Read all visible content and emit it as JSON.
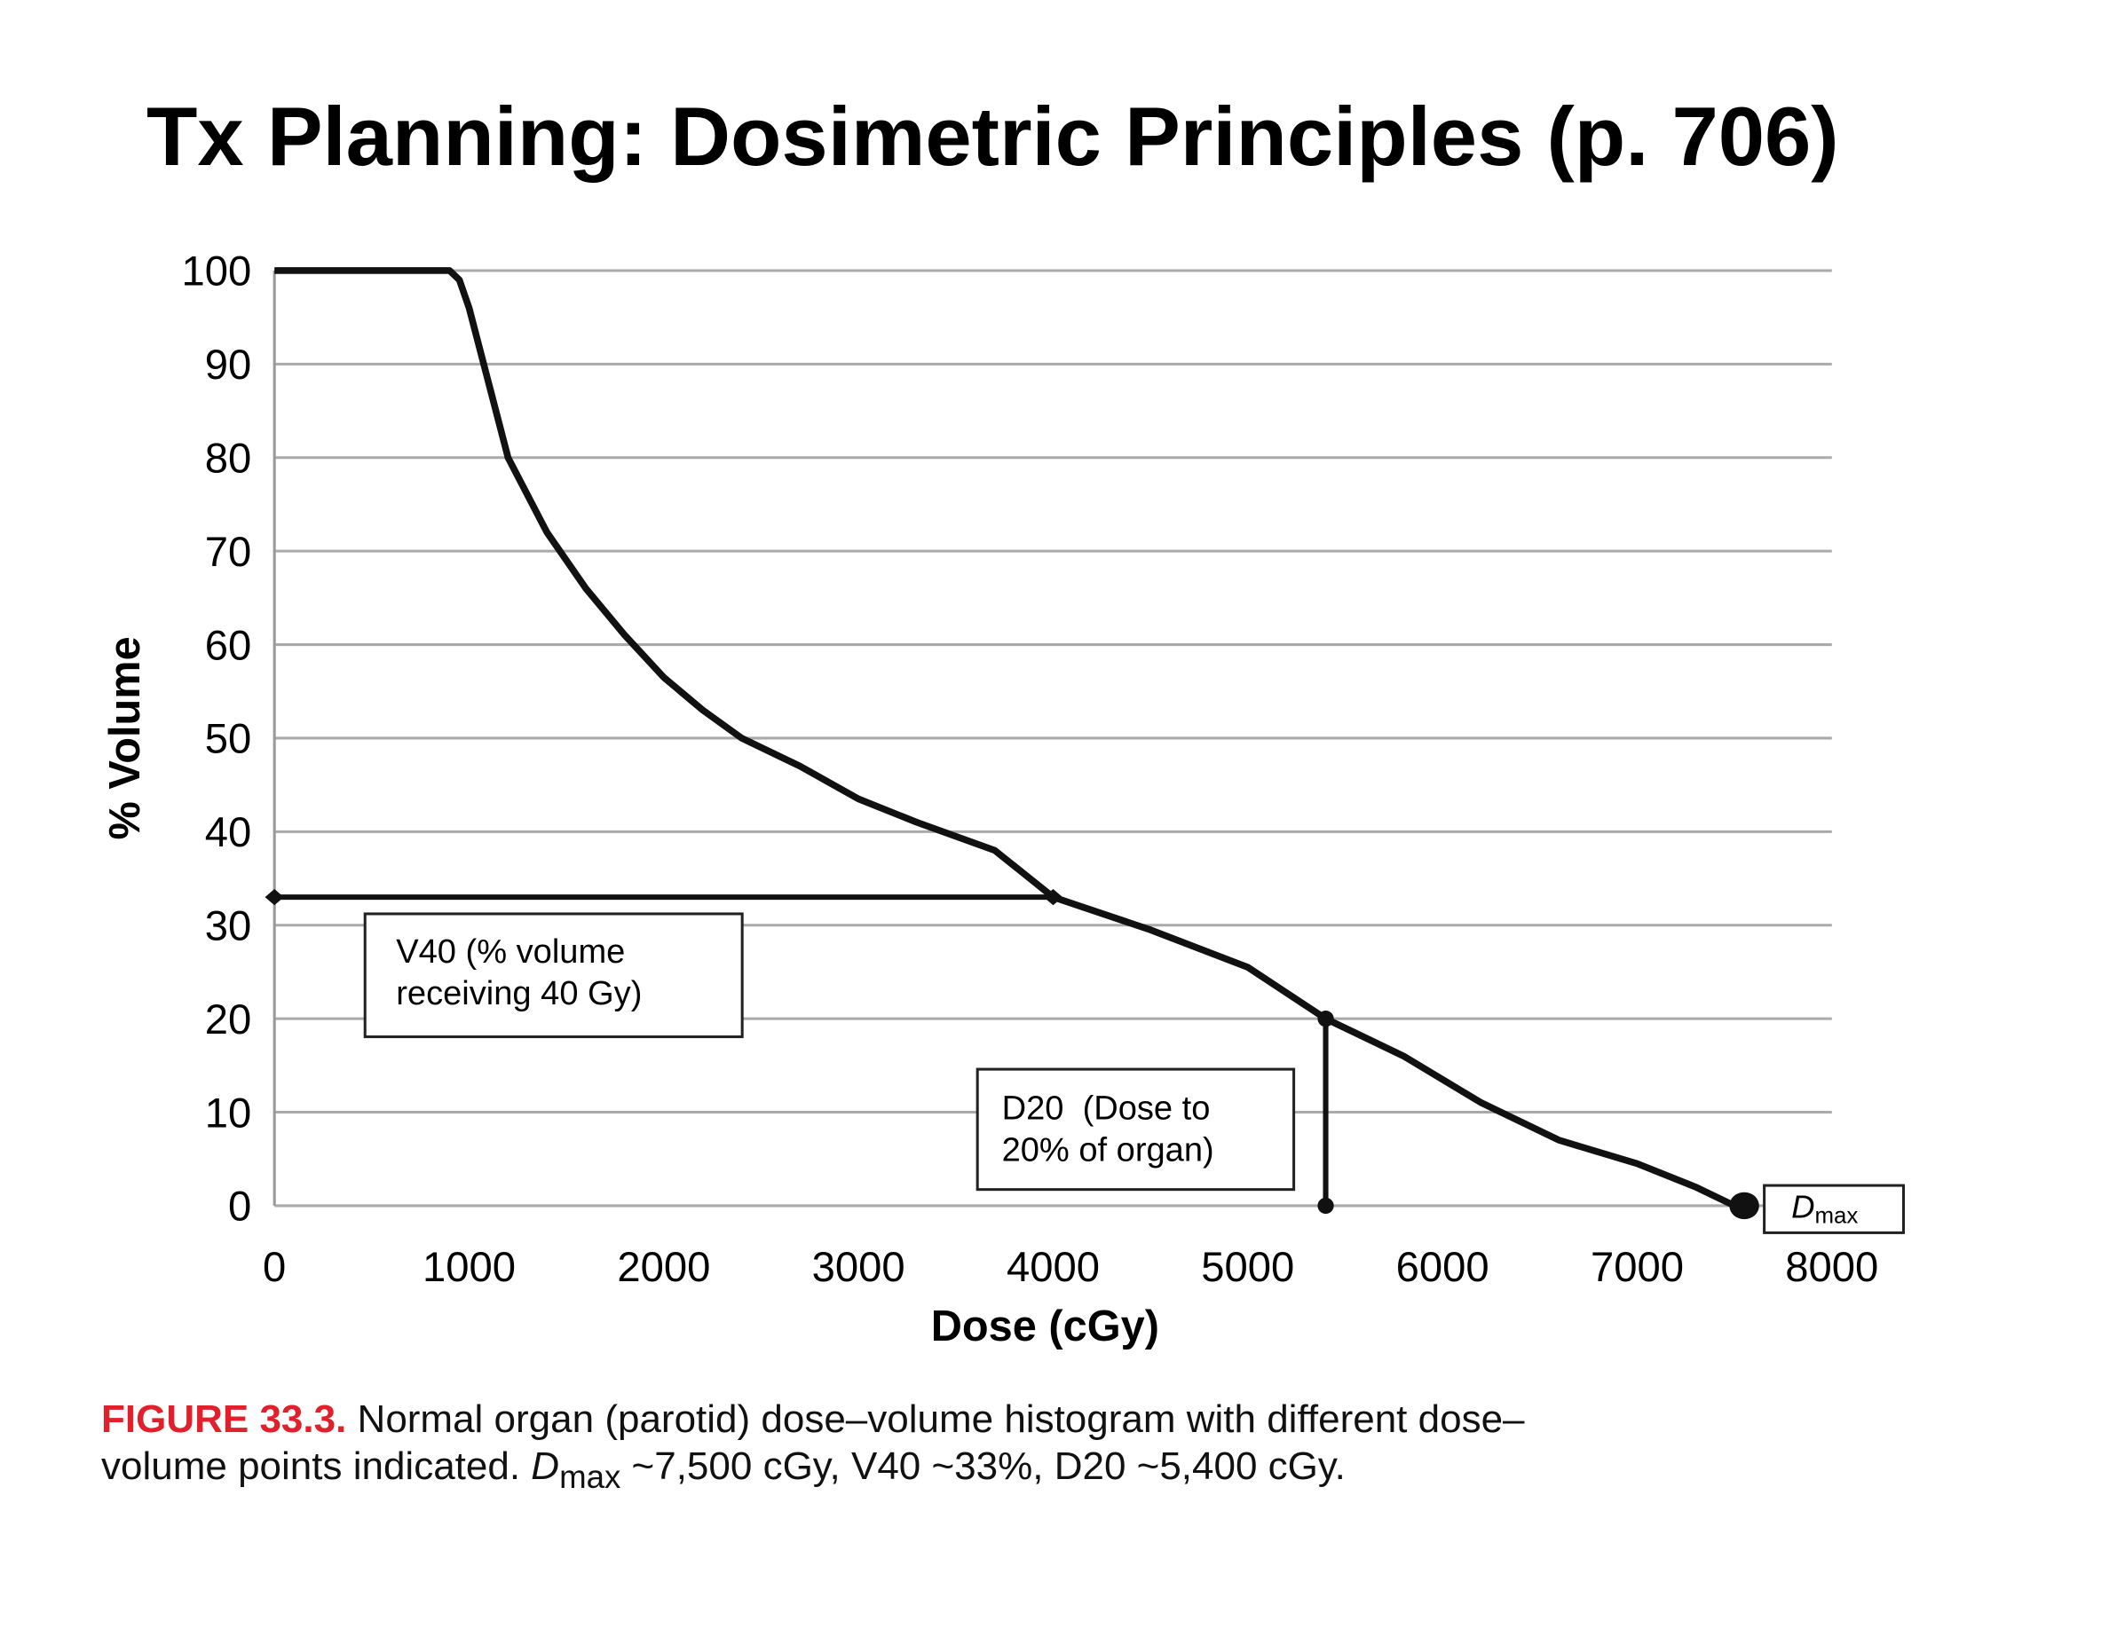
{
  "slide": {
    "title": "Tx Planning: Dosimetric Principles (p. 706)"
  },
  "caption": {
    "figure_label": "FIGURE 33.3.",
    "line1": " Normal organ (parotid) dose–volume histogram with different dose–",
    "line2_pre": "volume points indicated. ",
    "dmax_D": "D",
    "dmax_sub": "max",
    "line2_post": " ~7,500 cGy, V40 ~33%, D20 ~5,400 cGy.",
    "label_color": "#e0202a"
  },
  "chart_data": {
    "type": "line",
    "title": "",
    "xlabel": "Dose (cGy)",
    "ylabel": "% Volume",
    "xlim": [
      0,
      8000
    ],
    "ylim": [
      0,
      100
    ],
    "xticks": [
      "0",
      "1000",
      "2000",
      "3000",
      "4000",
      "5000",
      "6000",
      "7000",
      "8000"
    ],
    "yticks": [
      "0",
      "10",
      "20",
      "30",
      "40",
      "50",
      "60",
      "70",
      "80",
      "90",
      "100"
    ],
    "grid": "horizontal",
    "series": [
      {
        "x": [
          0,
          900,
          950,
          1000,
          1100,
          1200,
          1400,
          1600,
          1800,
          2000,
          2200,
          2400,
          2700,
          3000,
          3300,
          3700,
          4000,
          4500,
          5000,
          5400,
          5800,
          6200,
          6600,
          7000,
          7300,
          7500
        ],
        "y": [
          100,
          100,
          99,
          96,
          88,
          80,
          72,
          66,
          61,
          56.5,
          53,
          50,
          47,
          43.5,
          41,
          38,
          33,
          29.5,
          25.5,
          20,
          16,
          11,
          7,
          4.5,
          2,
          0
        ]
      }
    ],
    "annotations": {
      "v40": {
        "label_line1": "V40 (% volume",
        "label_line2": "receiving 40 Gy)",
        "x": 4000,
        "y": 33
      },
      "d20": {
        "label_line1": "D20  (Dose to",
        "label_line2": "20% of organ)",
        "x": 5400,
        "y": 20
      },
      "dmax": {
        "label_D": "D",
        "label_sub": "max",
        "x": 7550,
        "y": 0
      }
    }
  }
}
